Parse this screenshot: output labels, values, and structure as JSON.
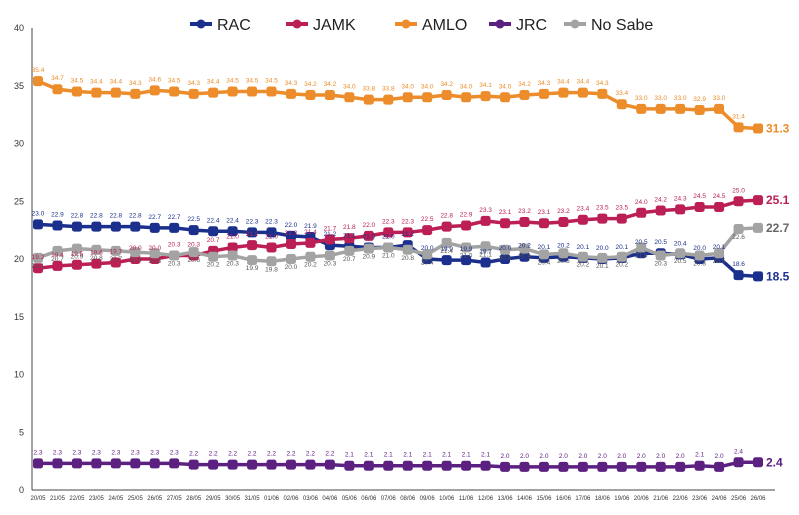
{
  "chart_data": {
    "type": "line",
    "title": "",
    "xlabel": "",
    "ylabel": "",
    "ylim": [
      0,
      40
    ],
    "yticks": [
      "0",
      "5",
      "10",
      "15",
      "20",
      "25",
      "30",
      "35",
      "40"
    ],
    "legend_position": "top",
    "categories": [
      "20/05",
      "21/05",
      "22/05",
      "23/05",
      "24/05",
      "25/05",
      "26/05",
      "27/05",
      "28/05",
      "29/05",
      "30/05",
      "31/05",
      "01/06",
      "02/06",
      "03/06",
      "04/06",
      "05/06",
      "06/06",
      "07/06",
      "08/06",
      "09/06",
      "10/06",
      "11/06",
      "12/06",
      "13/06",
      "14/06",
      "15/06",
      "16/06",
      "17/06",
      "18/06",
      "19/06",
      "20/06",
      "21/06",
      "22/06",
      "23/06",
      "24/06",
      "25/06",
      "26/06"
    ],
    "series": [
      {
        "name": "RAC",
        "color": "#1b2f8c",
        "values": [
          23.0,
          22.9,
          22.8,
          22.8,
          22.8,
          22.8,
          22.7,
          22.7,
          22.5,
          22.4,
          22.4,
          22.3,
          22.3,
          22.0,
          21.9,
          21.2,
          21.1,
          21.0,
          21.0,
          21.2,
          20.0,
          19.9,
          19.9,
          19.7,
          20.0,
          20.2,
          20.1,
          20.2,
          20.1,
          20.0,
          20.1,
          20.5,
          20.5,
          20.4,
          20.0,
          20.1,
          18.6,
          18.5
        ]
      },
      {
        "name": "JAMK",
        "color": "#bb1f55",
        "values": [
          19.2,
          19.4,
          19.5,
          19.6,
          19.7,
          20.0,
          20.0,
          20.3,
          20.3,
          20.7,
          21.0,
          21.2,
          21.0,
          21.3,
          21.4,
          21.7,
          21.8,
          22.0,
          22.3,
          22.3,
          22.5,
          22.8,
          22.9,
          23.3,
          23.1,
          23.2,
          23.1,
          23.2,
          23.4,
          23.5,
          23.5,
          24.0,
          24.2,
          24.3,
          24.5,
          24.5,
          25.0,
          25.1
        ]
      },
      {
        "name": "AMLO",
        "color": "#ec8c2a",
        "values": [
          35.4,
          34.7,
          34.5,
          34.4,
          34.4,
          34.3,
          34.6,
          34.5,
          34.3,
          34.4,
          34.5,
          34.5,
          34.5,
          34.3,
          34.2,
          34.2,
          34.0,
          33.8,
          33.8,
          34.0,
          34.0,
          34.2,
          34.0,
          34.1,
          34.0,
          34.2,
          34.3,
          34.4,
          34.4,
          34.3,
          33.4,
          33.0,
          33.0,
          33.0,
          32.9,
          33.0,
          31.4,
          31.3
        ]
      },
      {
        "name": "JRC",
        "color": "#5c2080",
        "values": [
          2.3,
          2.3,
          2.3,
          2.3,
          2.3,
          2.3,
          2.3,
          2.3,
          2.2,
          2.2,
          2.2,
          2.2,
          2.2,
          2.2,
          2.2,
          2.2,
          2.1,
          2.1,
          2.1,
          2.1,
          2.1,
          2.1,
          2.1,
          2.1,
          2.0,
          2.0,
          2.0,
          2.0,
          2.0,
          2.0,
          2.0,
          2.0,
          2.0,
          2.0,
          2.1,
          2.0,
          2.4,
          2.4
        ]
      },
      {
        "name": "No Sabe",
        "color": "#a3a3a3",
        "values": [
          20.1,
          20.7,
          20.9,
          20.8,
          20.7,
          20.6,
          20.5,
          20.3,
          20.6,
          20.2,
          20.3,
          19.9,
          19.8,
          20.0,
          20.2,
          20.3,
          20.7,
          20.9,
          21.0,
          20.8,
          20.4,
          21.4,
          21.0,
          21.1,
          20.8,
          20.9,
          20.4,
          20.5,
          20.2,
          20.1,
          20.2,
          21.0,
          20.3,
          20.5,
          20.3,
          20.5,
          22.6,
          22.7
        ]
      }
    ],
    "last_value_labels": {
      "RAC": "18.5",
      "JAMK": "25.1",
      "AMLO": "31.3",
      "JRC": "2.4",
      "No Sabe": "22.7"
    }
  }
}
